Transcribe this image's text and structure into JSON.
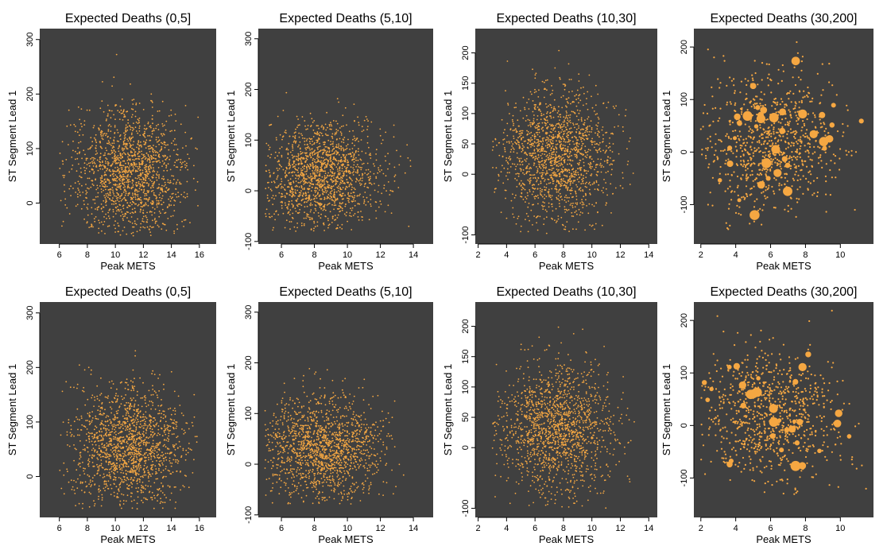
{
  "chart_data": [
    {
      "type": "scatter",
      "title": "Expected Deaths (0,5]",
      "xlabel": "Peak METS",
      "ylabel": "ST Segment Lead 1",
      "xlim": [
        4.6,
        17.2
      ],
      "ylim": [
        -75,
        320
      ],
      "xticks": [
        6,
        8,
        10,
        12,
        14,
        16
      ],
      "yticks": [
        0,
        100,
        200,
        300
      ],
      "point_color": "#F5A742",
      "background": "#404040",
      "marker_size": "small",
      "clusters": [
        {
          "x": [
            6,
            16
          ],
          "y": [
            -60,
            290
          ],
          "center_x": 11,
          "center_y": 55
        }
      ]
    },
    {
      "type": "scatter",
      "title": "Expected Deaths (5,10]",
      "xlabel": "Peak METS",
      "ylabel": "ST Segment Lead 1",
      "xlim": [
        4.6,
        15.2
      ],
      "ylim": [
        -105,
        320
      ],
      "xticks": [
        6,
        8,
        10,
        12,
        14
      ],
      "yticks": [
        -100,
        0,
        100,
        200,
        300
      ],
      "point_color": "#F5A742",
      "background": "#404040",
      "marker_size": "small",
      "clusters": [
        {
          "x": [
            5,
            14
          ],
          "y": [
            -80,
            240
          ],
          "center_x": 8.5,
          "center_y": 30
        }
      ]
    },
    {
      "type": "scatter",
      "title": "Expected Deaths (10,30]",
      "xlabel": "Peak METS",
      "ylabel": "ST Segment Lead 1",
      "xlim": [
        1.8,
        14.6
      ],
      "ylim": [
        -115,
        240
      ],
      "xticks": [
        2,
        4,
        6,
        8,
        10,
        12,
        14
      ],
      "yticks": [
        -100,
        0,
        50,
        100,
        150,
        200
      ],
      "point_color": "#F5A742",
      "background": "#404040",
      "marker_size": "small",
      "clusters": [
        {
          "x": [
            3,
            13
          ],
          "y": [
            -100,
            220
          ],
          "center_x": 7.5,
          "center_y": 30
        }
      ]
    },
    {
      "type": "scatter",
      "title": "Expected Deaths (30,200]",
      "xlabel": "Peak METS",
      "ylabel": "ST Segment Lead 1",
      "xlim": [
        1.6,
        11.9
      ],
      "ylim": [
        -175,
        235
      ],
      "xticks": [
        2,
        4,
        6,
        8,
        10
      ],
      "yticks": [
        -100,
        0,
        100,
        200
      ],
      "point_color": "#F5A742",
      "background": "#404040",
      "marker_size": "large",
      "clusters": [
        {
          "x": [
            2,
            11.5
          ],
          "y": [
            -150,
            220
          ],
          "center_x": 6,
          "center_y": 20
        }
      ]
    },
    {
      "type": "scatter",
      "title": "Expected Deaths (0,5]",
      "xlabel": "Peak METS",
      "ylabel": "ST Segment Lead 1",
      "xlim": [
        4.6,
        17.2
      ],
      "ylim": [
        -75,
        320
      ],
      "xticks": [
        6,
        8,
        10,
        12,
        14,
        16
      ],
      "yticks": [
        0,
        100,
        200,
        300
      ],
      "point_color": "#F5A742",
      "background": "#404040",
      "marker_size": "small",
      "clusters": [
        {
          "x": [
            6,
            16
          ],
          "y": [
            -60,
            290
          ],
          "center_x": 11,
          "center_y": 55
        }
      ]
    },
    {
      "type": "scatter",
      "title": "Expected Deaths (5,10]",
      "xlabel": "Peak METS",
      "ylabel": "ST Segment Lead 1",
      "xlim": [
        4.6,
        15.2
      ],
      "ylim": [
        -105,
        320
      ],
      "xticks": [
        6,
        8,
        10,
        12,
        14
      ],
      "yticks": [
        -100,
        0,
        100,
        200,
        300
      ],
      "point_color": "#F5A742",
      "background": "#404040",
      "marker_size": "small",
      "clusters": [
        {
          "x": [
            5,
            14
          ],
          "y": [
            -80,
            240
          ],
          "center_x": 8.5,
          "center_y": 30
        }
      ]
    },
    {
      "type": "scatter",
      "title": "Expected Deaths (10,30]",
      "xlabel": "Peak METS",
      "ylabel": "ST Segment Lead 1",
      "xlim": [
        1.8,
        14.6
      ],
      "ylim": [
        -115,
        240
      ],
      "xticks": [
        2,
        4,
        6,
        8,
        10,
        12,
        14
      ],
      "yticks": [
        -100,
        0,
        50,
        100,
        150,
        200
      ],
      "point_color": "#F5A742",
      "background": "#404040",
      "marker_size": "small",
      "clusters": [
        {
          "x": [
            3,
            13
          ],
          "y": [
            -100,
            220
          ],
          "center_x": 7.5,
          "center_y": 30
        }
      ]
    },
    {
      "type": "scatter",
      "title": "Expected Deaths (30,200]",
      "xlabel": "Peak METS",
      "ylabel": "ST Segment Lead 1",
      "xlim": [
        1.6,
        11.9
      ],
      "ylim": [
        -175,
        235
      ],
      "xticks": [
        2,
        4,
        6,
        8,
        10
      ],
      "yticks": [
        -100,
        0,
        100,
        200
      ],
      "point_color": "#F5A742",
      "background": "#404040",
      "marker_size": "large",
      "clusters": [
        {
          "x": [
            2,
            11.5
          ],
          "y": [
            -150,
            220
          ],
          "center_x": 6,
          "center_y": 20
        }
      ]
    }
  ]
}
